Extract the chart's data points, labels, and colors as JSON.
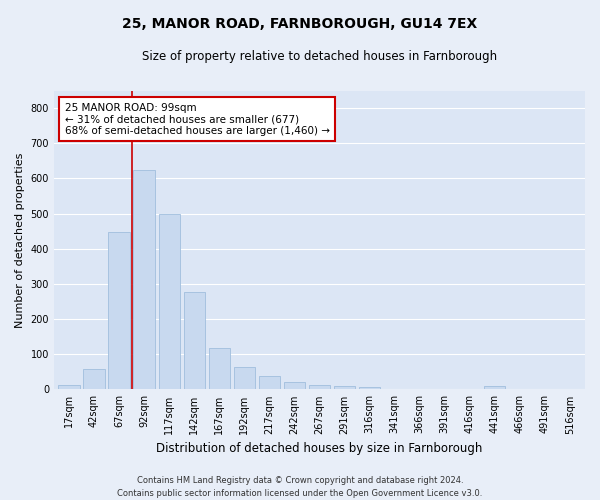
{
  "title": "25, MANOR ROAD, FARNBOROUGH, GU14 7EX",
  "subtitle": "Size of property relative to detached houses in Farnborough",
  "xlabel": "Distribution of detached houses by size in Farnborough",
  "ylabel": "Number of detached properties",
  "bar_color": "#c8d9ef",
  "bar_edge_color": "#a0bedd",
  "bg_color": "#dce6f5",
  "grid_color": "#ffffff",
  "fig_bg_color": "#e8eef8",
  "categories": [
    "17sqm",
    "42sqm",
    "67sqm",
    "92sqm",
    "117sqm",
    "142sqm",
    "167sqm",
    "192sqm",
    "217sqm",
    "242sqm",
    "267sqm",
    "291sqm",
    "316sqm",
    "341sqm",
    "366sqm",
    "391sqm",
    "416sqm",
    "441sqm",
    "466sqm",
    "491sqm",
    "516sqm"
  ],
  "values": [
    12,
    58,
    447,
    625,
    500,
    278,
    118,
    65,
    37,
    22,
    12,
    10,
    8,
    0,
    0,
    0,
    0,
    10,
    0,
    0,
    0
  ],
  "ylim": [
    0,
    850
  ],
  "yticks": [
    0,
    100,
    200,
    300,
    400,
    500,
    600,
    700,
    800
  ],
  "vline_x_index": 3,
  "vline_color": "#cc0000",
  "annotation_text": "25 MANOR ROAD: 99sqm\n← 31% of detached houses are smaller (677)\n68% of semi-detached houses are larger (1,460) →",
  "annotation_box_color": "#ffffff",
  "annotation_box_edge_color": "#cc0000",
  "footer": "Contains HM Land Registry data © Crown copyright and database right 2024.\nContains public sector information licensed under the Open Government Licence v3.0.",
  "title_fontsize": 10,
  "subtitle_fontsize": 8.5,
  "ylabel_fontsize": 8,
  "xlabel_fontsize": 8.5,
  "tick_fontsize": 7,
  "annotation_fontsize": 7.5,
  "footer_fontsize": 6
}
